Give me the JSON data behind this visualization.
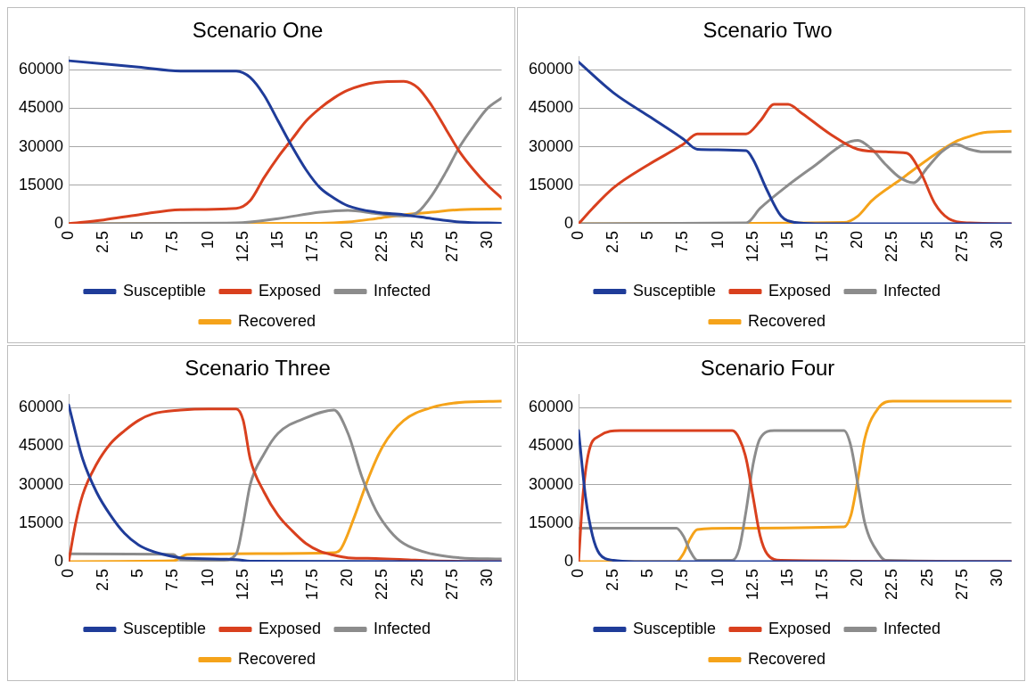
{
  "chart_data": [
    {
      "type": "line",
      "title": "Scenario One",
      "xlim": [
        0,
        31
      ],
      "xticks": [
        0,
        2.5,
        5,
        7.5,
        10,
        12.5,
        15,
        17.5,
        20,
        22.5,
        25,
        27.5,
        30
      ],
      "ylim": [
        0,
        65000
      ],
      "yticks": [
        0,
        15000,
        30000,
        45000,
        60000
      ],
      "grid": "y",
      "legend": "bottom",
      "marker": "none",
      "series": [
        {
          "name": "Susceptible",
          "color": "#1f3c99",
          "x": [
            0,
            5,
            8,
            12,
            13,
            14,
            15,
            16,
            17,
            18,
            19,
            20,
            22,
            24,
            26,
            28,
            31
          ],
          "values": [
            63500,
            61000,
            59500,
            59500,
            57000,
            50000,
            40000,
            30000,
            21000,
            14000,
            10000,
            7000,
            4500,
            3500,
            2000,
            700,
            200
          ]
        },
        {
          "name": "Exposed",
          "color": "#d9401e",
          "x": [
            0,
            2.5,
            5,
            8,
            12,
            13,
            14,
            15,
            16,
            17,
            18,
            19,
            20,
            22,
            24,
            25,
            26,
            27,
            28,
            29,
            30,
            31
          ],
          "values": [
            0,
            1500,
            3500,
            5500,
            6000,
            9000,
            18000,
            26000,
            33000,
            40000,
            45000,
            49000,
            52000,
            55000,
            55500,
            53000,
            46000,
            37000,
            28000,
            21000,
            15000,
            10000
          ]
        },
        {
          "name": "Infected",
          "color": "#8c8c8c",
          "x": [
            0,
            12,
            15,
            18,
            20,
            22,
            24,
            25,
            26,
            27,
            28,
            29,
            30,
            31
          ],
          "values": [
            0,
            300,
            2000,
            4500,
            5200,
            4000,
            3000,
            4500,
            11000,
            20000,
            30000,
            38000,
            45000,
            49000
          ]
        },
        {
          "name": "Recovered",
          "color": "#f5a31a",
          "x": [
            0,
            18,
            20,
            22,
            24,
            26,
            28,
            31
          ],
          "values": [
            0,
            200,
            700,
            2000,
            3500,
            4500,
            5500,
            5800
          ]
        }
      ]
    },
    {
      "type": "line",
      "title": "Scenario Two",
      "xlim": [
        0,
        31
      ],
      "xticks": [
        0,
        2.5,
        5,
        7.5,
        10,
        12.5,
        15,
        17.5,
        20,
        22.5,
        25,
        27.5,
        30
      ],
      "ylim": [
        0,
        65000
      ],
      "yticks": [
        0,
        15000,
        30000,
        45000,
        60000
      ],
      "grid": "y",
      "legend": "bottom",
      "marker": "none",
      "series": [
        {
          "name": "Susceptible",
          "color": "#1f3c99",
          "x": [
            0,
            2.5,
            5,
            7.5,
            8.5,
            12,
            12.5,
            13.5,
            14.5,
            15.5,
            17,
            31
          ],
          "values": [
            63000,
            51000,
            42000,
            33000,
            29000,
            28500,
            25000,
            13000,
            3000,
            500,
            0,
            0
          ]
        },
        {
          "name": "Exposed",
          "color": "#d9401e",
          "x": [
            0,
            1,
            2.5,
            5,
            7.5,
            8.5,
            12,
            13,
            14,
            15,
            16,
            18,
            20,
            22,
            23.5,
            24.5,
            25.5,
            26.5,
            28,
            31
          ],
          "values": [
            0,
            6000,
            14000,
            23000,
            31000,
            35000,
            35000,
            40000,
            46500,
            46500,
            43000,
            35000,
            29000,
            28000,
            27500,
            20000,
            8000,
            2000,
            300,
            0
          ]
        },
        {
          "name": "Infected",
          "color": "#8c8c8c",
          "x": [
            0,
            12,
            13,
            15,
            17,
            19,
            20,
            21,
            22,
            23,
            24,
            25,
            26,
            27,
            28,
            29,
            31
          ],
          "values": [
            0,
            300,
            6000,
            15000,
            23000,
            31000,
            32500,
            29000,
            23000,
            18000,
            16000,
            22000,
            28000,
            31000,
            29000,
            28000,
            28000
          ]
        },
        {
          "name": "Recovered",
          "color": "#f5a31a",
          "x": [
            0,
            19,
            20,
            21,
            23,
            25,
            27,
            28,
            29,
            31
          ],
          "values": [
            0,
            500,
            3000,
            9000,
            17000,
            25000,
            32000,
            34000,
            35500,
            36000
          ]
        }
      ]
    },
    {
      "type": "line",
      "title": "Scenario Three",
      "xlim": [
        0,
        31
      ],
      "xticks": [
        0,
        2.5,
        5,
        7.5,
        10,
        12.5,
        15,
        17.5,
        20,
        22.5,
        25,
        27.5,
        30
      ],
      "ylim": [
        0,
        65000
      ],
      "yticks": [
        0,
        15000,
        30000,
        45000,
        60000
      ],
      "grid": "y",
      "legend": "bottom",
      "marker": "none",
      "series": [
        {
          "name": "Susceptible",
          "color": "#1f3c99",
          "x": [
            0,
            1,
            2,
            3,
            4,
            5,
            6,
            7,
            8,
            12,
            13,
            31
          ],
          "values": [
            61000,
            40000,
            27000,
            18000,
            11000,
            6500,
            4000,
            2500,
            1500,
            800,
            200,
            0
          ]
        },
        {
          "name": "Exposed",
          "color": "#d9401e",
          "x": [
            0,
            0.5,
            1,
            2,
            3,
            4,
            5,
            6,
            8,
            10,
            12,
            12.5,
            13,
            14,
            15,
            16,
            17,
            18,
            19,
            20,
            22,
            24,
            26,
            31
          ],
          "values": [
            0,
            15000,
            26000,
            38000,
            46000,
            51000,
            55000,
            57500,
            59000,
            59500,
            59500,
            55000,
            40000,
            27000,
            18000,
            12000,
            7000,
            4000,
            2500,
            1500,
            1200,
            800,
            300,
            0
          ]
        },
        {
          "name": "Infected",
          "color": "#8c8c8c",
          "x": [
            0,
            7.5,
            8,
            11,
            12,
            12.5,
            13,
            14,
            15,
            17,
            19,
            20,
            21,
            22,
            23,
            24,
            26,
            28,
            31
          ],
          "values": [
            3000,
            2800,
            800,
            500,
            3000,
            15000,
            30000,
            42000,
            50000,
            56000,
            59000,
            50000,
            33000,
            20000,
            12000,
            7000,
            3000,
            1500,
            1000
          ]
        },
        {
          "name": "Recovered",
          "color": "#f5a31a",
          "x": [
            0,
            7.5,
            8.5,
            19,
            19.5,
            20.5,
            21.5,
            22.5,
            24,
            26,
            28,
            31
          ],
          "values": [
            0,
            300,
            2800,
            3500,
            5000,
            18000,
            33000,
            45000,
            55000,
            60000,
            62000,
            62500
          ]
        }
      ]
    },
    {
      "type": "line",
      "title": "Scenario Four",
      "xlim": [
        0,
        31
      ],
      "xticks": [
        0,
        2.5,
        5,
        7.5,
        10,
        12.5,
        15,
        17.5,
        20,
        22.5,
        25,
        27.5,
        30
      ],
      "ylim": [
        0,
        65000
      ],
      "yticks": [
        0,
        15000,
        30000,
        45000,
        60000
      ],
      "grid": "y",
      "legend": "bottom",
      "marker": "none",
      "series": [
        {
          "name": "Susceptible",
          "color": "#1f3c99",
          "x": [
            0,
            0.5,
            1,
            1.5,
            2.5,
            4,
            31
          ],
          "values": [
            51000,
            25000,
            10000,
            3000,
            500,
            0,
            0
          ]
        },
        {
          "name": "Exposed",
          "color": "#d9401e",
          "x": [
            0,
            0.3,
            0.7,
            1.5,
            3,
            11,
            11.5,
            12,
            12.5,
            13,
            13.5,
            14.5,
            31
          ],
          "values": [
            0,
            25000,
            42000,
            49000,
            51000,
            51000,
            48000,
            40000,
            25000,
            10000,
            3000,
            500,
            0
          ]
        },
        {
          "name": "Infected",
          "color": "#8c8c8c",
          "x": [
            0,
            7,
            7.5,
            8,
            8.5,
            11,
            11.5,
            12,
            12.5,
            13,
            14,
            19,
            19.5,
            20,
            20.5,
            21.5,
            22,
            31
          ],
          "values": [
            13000,
            13000,
            10000,
            4000,
            500,
            500,
            5000,
            20000,
            38000,
            48000,
            51000,
            51000,
            45000,
            30000,
            15000,
            3000,
            500,
            0
          ]
        },
        {
          "name": "Recovered",
          "color": "#f5a31a",
          "x": [
            0,
            7,
            7.5,
            8,
            8.5,
            11,
            19,
            19.5,
            20,
            20.5,
            21.5,
            22.5,
            31
          ],
          "values": [
            0,
            0,
            3000,
            9000,
            12500,
            13000,
            13500,
            18000,
            32000,
            48000,
            60000,
            62500,
            62500
          ]
        }
      ]
    }
  ]
}
